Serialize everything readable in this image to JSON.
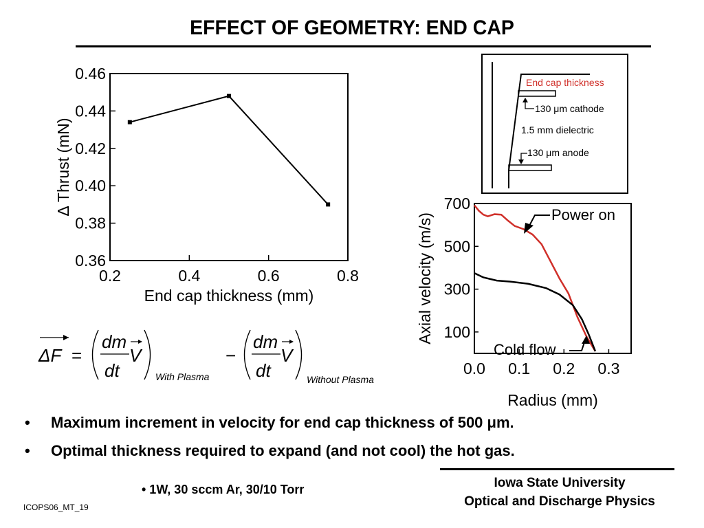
{
  "slide": {
    "title": "EFFECT OF GEOMETRY: END CAP",
    "bullets": [
      {
        "symbol": "•",
        "text": "Maximum increment in velocity for end cap thickness of 500 μm."
      },
      {
        "symbol": "•",
        "text": "Optimal thickness required to expand (and not cool) the hot gas."
      }
    ],
    "conditions": "• 1W, 30 sccm Ar, 30/10 Torr",
    "footer": {
      "line1": "Iowa State University",
      "line2": "Optical and Discharge Physics"
    },
    "slide_id": "ICOPS06_MT_19"
  },
  "geometry_diagram": {
    "labels": {
      "end_cap": "End cap thickness",
      "cathode": "130 μm cathode",
      "dielectric": "1.5 mm dielectric",
      "anode": "130 μm anode"
    },
    "end_cap_color": "#d0302a"
  },
  "equation": {
    "lhs": "ΔF",
    "numerator": "dm",
    "velocity": "V",
    "denominator": "dt",
    "sub_with": "With Plasma",
    "sub_without": "Without Plasma"
  },
  "chart_data": [
    {
      "type": "line",
      "xlabel": "End cap thickness (mm)",
      "ylabel": "Δ Thrust (mN)",
      "xlim": [
        0.2,
        0.8
      ],
      "ylim": [
        0.36,
        0.46
      ],
      "xticks": [
        "0.2",
        "0.4",
        "0.6",
        "0.8"
      ],
      "yticks": [
        "0.36",
        "0.38",
        "0.40",
        "0.42",
        "0.44",
        "0.46"
      ],
      "series": [
        {
          "x": [
            0.25,
            0.5,
            0.75
          ],
          "y": [
            0.434,
            0.448,
            0.39
          ],
          "color": "#000000"
        }
      ]
    },
    {
      "type": "line",
      "xlabel": "Radius (mm)",
      "ylabel": "Axial velocity (m/s)",
      "xlim": [
        0.0,
        0.35
      ],
      "ylim": [
        0,
        700
      ],
      "xticks": [
        "0.0",
        "0.1",
        "0.2",
        "0.3"
      ],
      "yticks": [
        "100",
        "300",
        "500",
        "700"
      ],
      "annotations": [
        "Power on",
        "Cold flow"
      ],
      "series": [
        {
          "name": "Power on",
          "color": "#d0302a",
          "x": [
            0.0,
            0.01,
            0.02,
            0.03,
            0.045,
            0.06,
            0.075,
            0.09,
            0.11,
            0.13,
            0.15,
            0.17,
            0.19,
            0.21,
            0.23,
            0.25,
            0.27
          ],
          "y": [
            692,
            666,
            648,
            640,
            650,
            648,
            620,
            595,
            580,
            555,
            510,
            430,
            350,
            280,
            170,
            80,
            10
          ]
        },
        {
          "name": "Cold flow",
          "color": "#000000",
          "x": [
            0.0,
            0.02,
            0.05,
            0.08,
            0.12,
            0.16,
            0.19,
            0.22,
            0.24,
            0.255,
            0.27
          ],
          "y": [
            375,
            355,
            340,
            335,
            325,
            305,
            275,
            225,
            160,
            90,
            10
          ]
        }
      ]
    }
  ]
}
